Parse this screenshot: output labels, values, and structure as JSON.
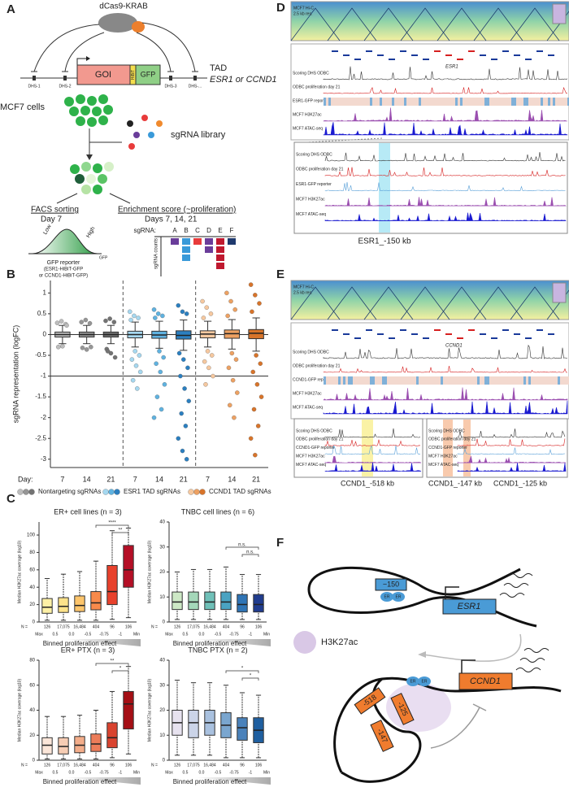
{
  "panel_labels": [
    "A",
    "B",
    "C",
    "D",
    "E",
    "F"
  ],
  "panel_a": {
    "top": "dCas9-KRAB",
    "gene": "GOI",
    "tag": "HiBiT",
    "reporter": "GFP",
    "dhs": [
      "DHS-1",
      "DHS-2",
      "DHS-3",
      "DHS-..."
    ],
    "tad": "TAD",
    "tad_genes": "ESR1 or CCND1",
    "cells": "MCF7 cells",
    "library": "sgRNA library",
    "facs_title": "FACS sorting",
    "facs_day": "Day 7",
    "low": "Low",
    "high": "High",
    "gfp_axis": "GFP",
    "facs_caption": [
      "GFP reporter",
      "(ESR1-HiBiT-GFP",
      "or CCND1-HiBiT-GFP)"
    ],
    "enrich_title": "Enrichment score (~proliferation)",
    "enrich_days": "Days 7, 14, 21",
    "sgrna_label": "sgRNA:",
    "sgrnas": [
      "A",
      "B",
      "C",
      "D",
      "E",
      "F"
    ],
    "counts_label": "sgRNA counts"
  },
  "chart_data": [
    {
      "type": "box",
      "ylabel": "sgRNA representation (logFC)",
      "x_prefix": "Day:",
      "categories": [
        "7",
        "14",
        "21",
        "7",
        "14",
        "21",
        "7",
        "14",
        "21"
      ],
      "colors": [
        "#bdbdbd",
        "#969696",
        "#737373",
        "#a6d8f0",
        "#5fb2e0",
        "#2b7fc0",
        "#f6c89f",
        "#eda162",
        "#d8742a"
      ],
      "boxes": [
        {
          "min": -0.22,
          "q1": -0.06,
          "median": 0,
          "q3": 0.06,
          "max": 0.22,
          "outliers": [
            0.28,
            0.32,
            0.25,
            -0.3,
            -0.28,
            0.22
          ]
        },
        {
          "min": -0.22,
          "q1": -0.06,
          "median": 0,
          "q3": 0.06,
          "max": 0.22,
          "outliers": [
            0.3,
            0.35,
            0.27,
            -0.32,
            -0.36,
            -0.3
          ]
        },
        {
          "min": -0.22,
          "q1": -0.06,
          "median": 0,
          "q3": 0.06,
          "max": 0.22,
          "outliers": [
            0.33,
            0.38,
            0.3,
            -0.35,
            -0.45,
            -0.55,
            -0.4
          ]
        },
        {
          "min": -0.3,
          "q1": -0.08,
          "median": 0,
          "q3": 0.08,
          "max": 0.3,
          "outliers": [
            0.55,
            0.45,
            0.4,
            0.35,
            -0.4,
            -0.5,
            -0.6,
            -0.75,
            -0.9,
            -1.1,
            -1.3
          ]
        },
        {
          "min": -0.33,
          "q1": -0.09,
          "median": -0.01,
          "q3": 0.08,
          "max": 0.32,
          "outliers": [
            0.6,
            0.5,
            0.45,
            0.4,
            -0.4,
            -0.55,
            -0.7,
            -0.9,
            -1.2,
            -1.5,
            -1.8,
            -2.0
          ]
        },
        {
          "min": -0.38,
          "q1": -0.11,
          "median": -0.02,
          "q3": 0.09,
          "max": 0.35,
          "outliers": [
            0.7,
            0.55,
            0.5,
            -0.45,
            -0.6,
            -0.8,
            -1.0,
            -1.3,
            -1.6,
            -1.9,
            -2.2,
            -2.5,
            -2.8,
            -3.0
          ]
        },
        {
          "min": -0.3,
          "q1": -0.08,
          "median": 0.01,
          "q3": 0.09,
          "max": 0.32,
          "outliers": [
            0.8,
            0.65,
            0.5,
            0.4,
            -0.4,
            -0.5,
            -0.65,
            -0.8,
            -1.0,
            -1.2
          ]
        },
        {
          "min": -0.35,
          "q1": -0.09,
          "median": 0.02,
          "q3": 0.11,
          "max": 0.36,
          "outliers": [
            1.0,
            0.8,
            0.6,
            0.45,
            -0.45,
            -0.6,
            -0.8,
            -1.1,
            -1.4,
            -1.7,
            -2.0
          ]
        },
        {
          "min": -0.4,
          "q1": -0.1,
          "median": 0.03,
          "q3": 0.12,
          "max": 0.4,
          "outliers": [
            1.2,
            0.95,
            0.75,
            0.55,
            -0.5,
            -0.7,
            -0.9,
            -1.2,
            -1.5,
            -1.8,
            -2.2,
            -2.5,
            -2.9
          ]
        }
      ],
      "ylim": [
        -3.2,
        1.3
      ],
      "yticks": [
        1,
        0.5,
        0,
        -0.5,
        -1,
        -1.5,
        -2,
        -2.5,
        -3
      ],
      "hlines": [
        0,
        -1
      ],
      "legend": [
        {
          "name": "Nontargeting sgRNAs",
          "colors": [
            "#bdbdbd",
            "#969696",
            "#737373"
          ]
        },
        {
          "name": "ESR1 TAD sgRNAs",
          "colors": [
            "#a6d8f0",
            "#5fb2e0",
            "#2b7fc0"
          ]
        },
        {
          "name": "CCND1 TAD sgRNAs",
          "colors": [
            "#f6c89f",
            "#eda162",
            "#d8742a"
          ]
        }
      ]
    },
    {
      "type": "box",
      "title": "ER+ cell lines (n = 3)",
      "ylabel": "Median H3K27ac coverage (log10)",
      "xlabel": "Binned proliferation effect",
      "n_label": "N =",
      "counts": [
        126,
        17075,
        16484,
        404,
        96,
        106
      ],
      "count_labels": [
        "126",
        "17,075",
        "16,484",
        "404",
        "96",
        "106"
      ],
      "bin_labels": [
        "Max",
        "0.5",
        "0.0",
        "-0.5",
        "-0.75",
        "-1",
        "Min"
      ],
      "colors": [
        "#fdf0a6",
        "#fde28a",
        "#fdc56c",
        "#f88a4b",
        "#e8412c",
        "#b50f26"
      ],
      "boxes": [
        {
          "min": 2,
          "q1": 10,
          "median": 17,
          "q3": 27,
          "max": 50
        },
        {
          "min": 2,
          "q1": 11,
          "median": 18,
          "q3": 28,
          "max": 55
        },
        {
          "min": 2,
          "q1": 12,
          "median": 19,
          "q3": 30,
          "max": 58
        },
        {
          "min": 2,
          "q1": 14,
          "median": 22,
          "q3": 35,
          "max": 70
        },
        {
          "min": 3,
          "q1": 20,
          "median": 35,
          "q3": 65,
          "max": 105
        },
        {
          "min": 5,
          "q1": 40,
          "median": 60,
          "q3": 88,
          "max": 108
        }
      ],
      "ylim": [
        0,
        115
      ],
      "yticks": [
        0,
        20,
        40,
        60,
        80,
        100
      ],
      "annotations": [
        "****",
        "**"
      ]
    },
    {
      "type": "box",
      "title": "TNBC cell lines (n = 6)",
      "ylabel": "Median H3K27ac coverage (log10)",
      "xlabel": "Binned proliferation effect",
      "n_label": "N =",
      "counts": [
        126,
        17075,
        16484,
        404,
        96,
        106
      ],
      "count_labels": [
        "126",
        "17,075",
        "16,484",
        "404",
        "96",
        "106"
      ],
      "bin_labels": [
        "Max",
        "0.5",
        "0.0",
        "-0.5",
        "-0.75",
        "-1",
        "Min"
      ],
      "colors": [
        "#cde8c5",
        "#a4d7b9",
        "#6fc0b8",
        "#4aa3c2",
        "#2f74b5",
        "#203c8e"
      ],
      "boxes": [
        {
          "min": 1,
          "q1": 5,
          "median": 8,
          "q3": 12,
          "max": 20
        },
        {
          "min": 1,
          "q1": 5,
          "median": 8,
          "q3": 12,
          "max": 21
        },
        {
          "min": 1,
          "q1": 5,
          "median": 8,
          "q3": 12,
          "max": 21
        },
        {
          "min": 1,
          "q1": 5,
          "median": 8,
          "q3": 12,
          "max": 22
        },
        {
          "min": 1,
          "q1": 4,
          "median": 7,
          "q3": 11,
          "max": 19
        },
        {
          "min": 1,
          "q1": 4,
          "median": 7,
          "q3": 11,
          "max": 19
        }
      ],
      "ylim": [
        0,
        40
      ],
      "yticks": [
        0,
        10,
        20,
        30,
        40
      ],
      "annotations": [
        "n.s.",
        "n.s."
      ]
    },
    {
      "type": "box",
      "title": "ER+ PTX (n = 3)",
      "ylabel": "Median H3K27ac coverage (log10)",
      "xlabel": "Binned proliferation effect",
      "n_label": "N =",
      "counts": [
        126,
        17075,
        16484,
        404,
        96,
        106
      ],
      "count_labels": [
        "126",
        "17,075",
        "16,484",
        "404",
        "96",
        "106"
      ],
      "bin_labels": [
        "Max",
        "0.5",
        "0.0",
        "-0.5",
        "-0.75",
        "-1",
        "Min"
      ],
      "colors": [
        "#fbe6d9",
        "#f7cdb4",
        "#f3ad8a",
        "#ec7c59",
        "#d9432f",
        "#a50f15"
      ],
      "boxes": [
        {
          "min": 1,
          "q1": 5,
          "median": 12,
          "q3": 18,
          "max": 35
        },
        {
          "min": 1,
          "q1": 5,
          "median": 11,
          "q3": 18,
          "max": 35
        },
        {
          "min": 1,
          "q1": 6,
          "median": 12,
          "q3": 19,
          "max": 36
        },
        {
          "min": 1,
          "q1": 7,
          "median": 13,
          "q3": 21,
          "max": 40
        },
        {
          "min": 2,
          "q1": 10,
          "median": 18,
          "q3": 30,
          "max": 55
        },
        {
          "min": 5,
          "q1": 25,
          "median": 45,
          "q3": 55,
          "max": 75
        }
      ],
      "ylim": [
        0,
        80
      ],
      "yticks": [
        0,
        20,
        40,
        60,
        80
      ],
      "annotations": [
        "**",
        "*"
      ]
    },
    {
      "type": "box",
      "title": "TNBC PTX (n = 2)",
      "ylabel": "Median H3K27ac coverage (log10)",
      "xlabel": "Binned proliferation effect",
      "n_label": "N =",
      "counts": [
        126,
        17075,
        16484,
        404,
        96,
        106
      ],
      "count_labels": [
        "126",
        "17,075",
        "16,484",
        "404",
        "96",
        "106"
      ],
      "bin_labels": [
        "Max",
        "0.5",
        "0.0",
        "-0.5",
        "-0.75",
        "-1",
        "Min"
      ],
      "colors": [
        "#e7e2ef",
        "#cbd4e8",
        "#a9c1df",
        "#7aa6cf",
        "#4a82bb",
        "#1f5fa0"
      ],
      "boxes": [
        {
          "min": 2,
          "q1": 10,
          "median": 15,
          "q3": 20,
          "max": 32
        },
        {
          "min": 2,
          "q1": 9,
          "median": 15,
          "q3": 20,
          "max": 31
        },
        {
          "min": 2,
          "q1": 10,
          "median": 15,
          "q3": 20,
          "max": 31
        },
        {
          "min": 1,
          "q1": 9,
          "median": 14,
          "q3": 19,
          "max": 30
        },
        {
          "min": 1,
          "q1": 8,
          "median": 13,
          "q3": 17,
          "max": 27
        },
        {
          "min": 1,
          "q1": 7,
          "median": 12,
          "q3": 17,
          "max": 26
        }
      ],
      "ylim": [
        0,
        40
      ],
      "yticks": [
        0,
        10,
        20,
        30,
        40
      ],
      "annotations": [
        "*",
        "*"
      ]
    }
  ],
  "panel_d": {
    "hic": [
      "MCF7 Hi-C",
      "2.5 kb res."
    ],
    "tracks": [
      "Scoring DHS ODBC",
      "ODBC proliferation day 21",
      "ESR1-GFP reporter",
      "MCF7 H3K27ac",
      "MCF7 ATAC-seq"
    ],
    "genes": [
      "ESR1"
    ],
    "highlight": "ESR1_-150 kb"
  },
  "panel_e": {
    "hic": [
      "MCF7 Hi-C",
      "2.5 kb res."
    ],
    "tracks": [
      "Scoring DHS ODBC",
      "ODBC proliferation day 21",
      "CCND1-GFP reporter",
      "MCF7 H3K27ac",
      "MCF7 ATAC-seq"
    ],
    "genes": [
      "CCND1"
    ],
    "highlights": [
      "CCND1_-518 kb",
      "CCND1_-147 kb",
      "CCND1_-125 kb"
    ]
  },
  "panel_f": {
    "esr1_enh": "−150",
    "esr1": "ESR1",
    "er": "ER",
    "mark": "H3K27ac",
    "ccnd1": "CCND1",
    "ccnd1_enh": [
      "-518",
      "-125",
      "-147"
    ]
  }
}
